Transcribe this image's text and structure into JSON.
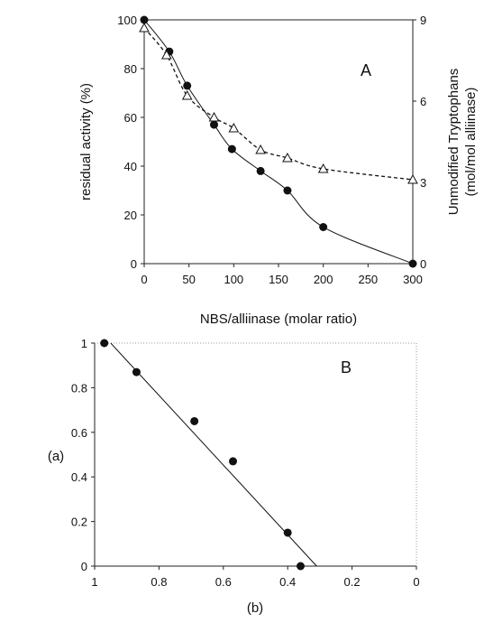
{
  "chart_data": [
    {
      "type": "scatter",
      "panel_label": "A",
      "xlabel": "NBS/alliinase (molar ratio)",
      "ylabel": "residual activity (%)",
      "y2label_line1": "Unmodified Tryptophans",
      "y2label_line2": "(mol/mol alliinase)",
      "xlim": [
        0,
        300
      ],
      "ylim": [
        0,
        100
      ],
      "y2lim": [
        0,
        9
      ],
      "x_ticks": [
        "0",
        "50",
        "100",
        "150",
        "200",
        "250",
        "300"
      ],
      "y_ticks": [
        "0",
        "20",
        "40",
        "60",
        "80",
        "100"
      ],
      "y2_ticks": [
        "0",
        "3",
        "6",
        "9"
      ],
      "series": [
        {
          "marker": "filled-circle",
          "axis": "left",
          "fit": "solid",
          "x": [
            0,
            28,
            48,
            78,
            98,
            130,
            160,
            200,
            300
          ],
          "y": [
            100,
            87,
            73,
            57,
            47,
            38,
            30,
            15,
            0
          ]
        },
        {
          "marker": "open-triangle",
          "axis": "right",
          "fit": "dashed",
          "x": [
            0,
            25,
            48,
            78,
            100,
            130,
            160,
            200,
            300
          ],
          "y": [
            8.7,
            7.7,
            6.2,
            5.4,
            5.0,
            4.2,
            3.9,
            3.5,
            3.1
          ]
        }
      ]
    },
    {
      "type": "scatter",
      "panel_label": "B",
      "xlabel": "(b)",
      "ylabel": "(a)",
      "xlim": [
        1,
        0
      ],
      "ylim": [
        0,
        1
      ],
      "x_ticks": [
        "1",
        "0.8",
        "0.6",
        "0.4",
        "0.2",
        "0"
      ],
      "y_ticks": [
        "0",
        "0.2",
        "0.4",
        "0.6",
        "0.8",
        "1"
      ],
      "series": [
        {
          "marker": "filled-circle",
          "fit": "solid-linear",
          "x": [
            0.97,
            0.87,
            0.69,
            0.57,
            0.4,
            0.36
          ],
          "y": [
            1.0,
            0.87,
            0.65,
            0.47,
            0.15,
            0.0
          ]
        }
      ],
      "fit_line": {
        "x": [
          0.95,
          0.31
        ],
        "y": [
          1.0,
          0.0
        ]
      }
    }
  ]
}
